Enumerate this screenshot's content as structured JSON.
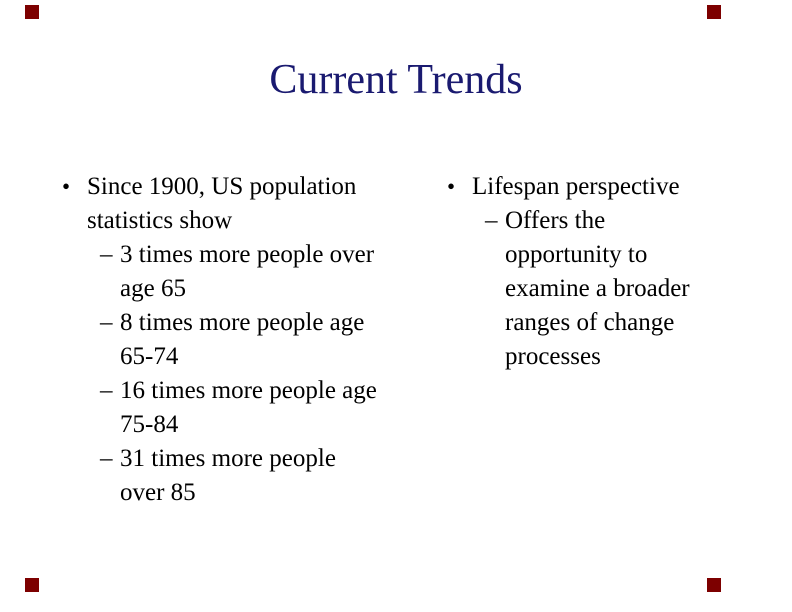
{
  "slide": {
    "title": "Current Trends",
    "title_color": "#1a1a70",
    "corner_marker_color": "#7d0000",
    "background_color": "#ffffff",
    "columns": [
      {
        "items": [
          {
            "level": 1,
            "marker": "•",
            "text": "Since 1900, US population\nstatistics show"
          },
          {
            "level": 2,
            "marker": "–",
            "text": "3 times more people over\nage 65"
          },
          {
            "level": 2,
            "marker": "–",
            "text": "8 times more people age\n65-74"
          },
          {
            "level": 2,
            "marker": "–",
            "text": "16 times more people age\n75-84"
          },
          {
            "level": 2,
            "marker": "–",
            "text": "31 times more people\nover 85"
          }
        ]
      },
      {
        "items": [
          {
            "level": 1,
            "marker": "•",
            "text": "Lifespan perspective"
          },
          {
            "level": 2,
            "marker": "–",
            "text": "Offers the\nopportunity to\nexamine a broader\nranges of change\nprocesses"
          }
        ]
      }
    ]
  }
}
